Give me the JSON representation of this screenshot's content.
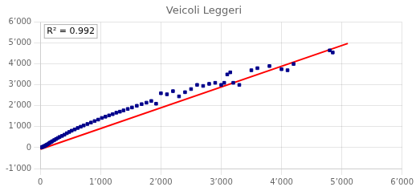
{
  "chart_data": {
    "type": "scatter",
    "title": "Veicoli Leggeri",
    "annotations": [
      "R² = 0.992"
    ],
    "grid": true,
    "xlim": [
      0,
      6000
    ],
    "ylim": [
      -1000,
      6000
    ],
    "xticks": [
      0,
      {
        "value": 1000,
        "label": "1’000"
      },
      {
        "value": 2000,
        "label": "2’000"
      },
      {
        "value": 3000,
        "label": "3’000"
      },
      {
        "value": 4000,
        "label": "4’000"
      },
      {
        "value": 5000,
        "label": "5’000"
      },
      {
        "value": 6000,
        "label": "6’000"
      }
    ],
    "yticks": [
      {
        "value": -1000,
        "label": "-1’000"
      },
      0,
      {
        "value": 1000,
        "label": "1’000"
      },
      {
        "value": 2000,
        "label": "2’000"
      },
      {
        "value": 3000,
        "label": "3’000"
      },
      {
        "value": 4000,
        "label": "4’000"
      },
      {
        "value": 5000,
        "label": "5’000"
      },
      {
        "value": 6000,
        "label": "6’000"
      }
    ],
    "series": [
      {
        "type": "scatter",
        "color": "#00008B",
        "marker": "square",
        "x": [
          10,
          25,
          40,
          55,
          70,
          85,
          100,
          120,
          140,
          160,
          180,
          200,
          230,
          260,
          290,
          320,
          360,
          400,
          440,
          480,
          520,
          570,
          620,
          670,
          720,
          780,
          840,
          900,
          960,
          1020,
          1080,
          1140,
          1200,
          1260,
          1320,
          1380,
          1450,
          1520,
          1600,
          1680,
          1760,
          1840,
          1920,
          2000,
          2100,
          2200,
          2300,
          2400,
          2500,
          2600,
          2700,
          2800,
          2900,
          3000,
          3050,
          3100,
          3150,
          3200,
          3300,
          3500,
          3600,
          3800,
          4000,
          4100,
          4200,
          4800,
          4850
        ],
        "values": [
          10,
          20,
          40,
          55,
          80,
          100,
          130,
          160,
          200,
          240,
          270,
          310,
          360,
          410,
          460,
          510,
          560,
          620,
          690,
          750,
          810,
          870,
          940,
          1000,
          1060,
          1130,
          1200,
          1270,
          1340,
          1420,
          1480,
          1540,
          1600,
          1670,
          1720,
          1780,
          1850,
          1920,
          2000,
          2080,
          2150,
          2230,
          2100,
          2600,
          2550,
          2700,
          2450,
          2650,
          2800,
          3000,
          2950,
          3050,
          3100,
          3000,
          3100,
          3500,
          3600,
          3100,
          3000,
          3700,
          3800,
          3900,
          3750,
          3700,
          4000,
          4650,
          4550
        ]
      },
      {
        "type": "line",
        "color": "#FF0000",
        "line_style": "solid",
        "x": [
          0,
          5100
        ],
        "values": [
          -80,
          4980
        ]
      }
    ]
  }
}
